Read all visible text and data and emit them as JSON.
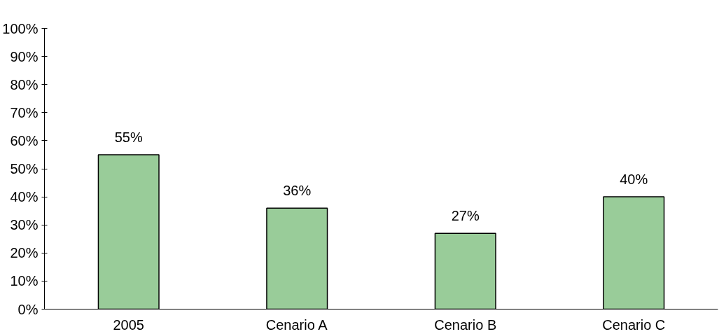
{
  "chart_data": {
    "type": "bar",
    "categories": [
      "2005",
      "Cenario A",
      "Cenario B",
      "Cenario C"
    ],
    "values": [
      55,
      36,
      27,
      40
    ],
    "value_labels": [
      "55%",
      "36%",
      "27%",
      "40%"
    ],
    "color": "#99cc99",
    "ylim": [
      0,
      100
    ],
    "yticks": [
      {
        "value": 0,
        "label": "0%"
      },
      {
        "value": 10,
        "label": "10%"
      },
      {
        "value": 20,
        "label": "20%"
      },
      {
        "value": 30,
        "label": "30%"
      },
      {
        "value": 40,
        "label": "40%"
      },
      {
        "value": 50,
        "label": "50%"
      },
      {
        "value": 60,
        "label": "60%"
      },
      {
        "value": 70,
        "label": "70%"
      },
      {
        "value": 80,
        "label": "80%"
      },
      {
        "value": 90,
        "label": "90%"
      },
      {
        "value": 100,
        "label": "100%"
      }
    ],
    "grid": false
  }
}
